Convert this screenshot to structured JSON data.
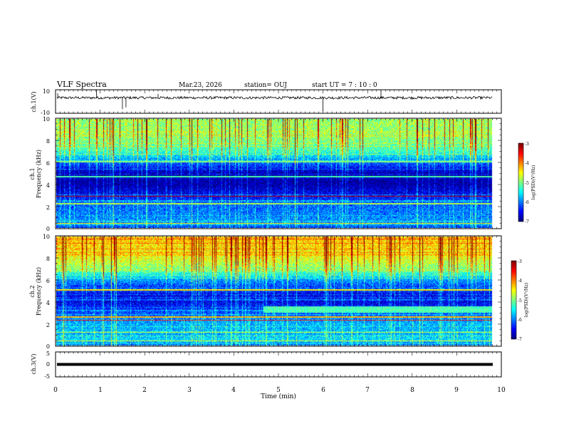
{
  "header": {
    "title": "VLF Spectra",
    "date": "Mar.23, 2026",
    "station": "station= OUJ",
    "start_time": "start UT =  7 : 10 : 0"
  },
  "chart_data": [
    {
      "type": "line",
      "panel": "ch1-waveform",
      "ylabel": "ch.1(V)",
      "ylim": [
        -10,
        10
      ],
      "y_tick_labels": [
        "10",
        "-10"
      ],
      "baseline": 3.2,
      "spikes": [
        {
          "x": 0.92,
          "y": 9.8
        },
        {
          "x": 1.5,
          "y": -6.5
        },
        {
          "x": 1.58,
          "y": -5.0
        },
        {
          "x": 6.0,
          "y": -8.0
        },
        {
          "x": 7.3,
          "y": 9.5
        },
        {
          "x": 2.3,
          "y": 6.5
        },
        {
          "x": 0.05,
          "y": 7.0
        }
      ]
    },
    {
      "type": "heatmap",
      "panel": "ch1-spectrogram",
      "ylabel_line1": "ch.1",
      "ylabel_line2": "Frequency (kHz)",
      "xlim": [
        0,
        10
      ],
      "ylim": [
        0,
        10
      ],
      "data_end_min": 9.8,
      "y_ticks": [
        "0",
        "2",
        "4",
        "6",
        "8",
        "10"
      ],
      "colorbar": {
        "label": "log(PSD)(V²/Hz)",
        "ticks": [
          "-3",
          "-4",
          "-5",
          "-6",
          "-7"
        ],
        "range": [
          -7,
          -3
        ]
      },
      "band_profile": [
        {
          "f": 0.0,
          "v": -6.2
        },
        {
          "f": 0.5,
          "v": -5.9
        },
        {
          "f": 1.0,
          "v": -6.0
        },
        {
          "f": 2.0,
          "v": -6.1
        },
        {
          "f": 3.0,
          "v": -6.5
        },
        {
          "f": 4.0,
          "v": -6.9
        },
        {
          "f": 5.0,
          "v": -6.85
        },
        {
          "f": 6.0,
          "v": -6.1
        },
        {
          "f": 7.0,
          "v": -5.3
        },
        {
          "f": 8.0,
          "v": -5.0
        },
        {
          "f": 9.0,
          "v": -4.9
        },
        {
          "f": 10.0,
          "v": -4.9
        }
      ],
      "lines": [
        {
          "f": 2.9,
          "v": -3.3
        },
        {
          "f": 0.4,
          "v": -4.3
        },
        {
          "f": 2.2,
          "v": -4.8
        },
        {
          "f": 6.1,
          "v": -5.0
        },
        {
          "f": 4.7,
          "v": -5.2
        }
      ]
    },
    {
      "type": "heatmap",
      "panel": "ch2-spectrogram",
      "ylabel_line1": "ch.2",
      "ylabel_line2": "Frequency (kHz)",
      "xlim": [
        0,
        10
      ],
      "ylim": [
        0,
        10
      ],
      "data_end_min": 9.8,
      "y_ticks": [
        "0",
        "2",
        "4",
        "6",
        "8",
        "10"
      ],
      "colorbar": {
        "label": "log(PSD)(V²/Hz)",
        "ticks": [
          "-3",
          "-4",
          "-5",
          "-6",
          "-7"
        ],
        "range": [
          -7,
          -3
        ]
      },
      "band_profile": [
        {
          "f": 0.0,
          "v": -6.0
        },
        {
          "f": 0.5,
          "v": -5.6
        },
        {
          "f": 1.0,
          "v": -5.8
        },
        {
          "f": 2.0,
          "v": -5.8
        },
        {
          "f": 3.0,
          "v": -6.2
        },
        {
          "f": 4.0,
          "v": -6.6
        },
        {
          "f": 5.0,
          "v": -6.5
        },
        {
          "f": 6.0,
          "v": -5.9
        },
        {
          "f": 7.0,
          "v": -5.0
        },
        {
          "f": 8.0,
          "v": -4.6
        },
        {
          "f": 9.0,
          "v": -4.4
        },
        {
          "f": 10.0,
          "v": -4.3
        }
      ],
      "lines": [
        {
          "f": 2.3,
          "v": -3.6
        },
        {
          "f": 2.6,
          "v": -4.2
        },
        {
          "f": 5.1,
          "v": -4.4
        },
        {
          "f": 1.2,
          "v": -4.7
        },
        {
          "f": 0.4,
          "v": -4.6
        }
      ],
      "emission": {
        "t_start": 4.65,
        "f_low": 3.0,
        "f_high": 3.6,
        "v": -5.2
      }
    },
    {
      "type": "line",
      "panel": "ch3-waveform",
      "ylabel": "ch.3(V)",
      "ylim": [
        -5,
        5
      ],
      "y_tick_labels": [
        "5",
        "0",
        "-5"
      ],
      "baseline": 0,
      "xlabel": "Time (min)",
      "x_ticks": [
        "0",
        "1",
        "2",
        "3",
        "4",
        "5",
        "6",
        "7",
        "8",
        "9",
        "10"
      ]
    }
  ]
}
